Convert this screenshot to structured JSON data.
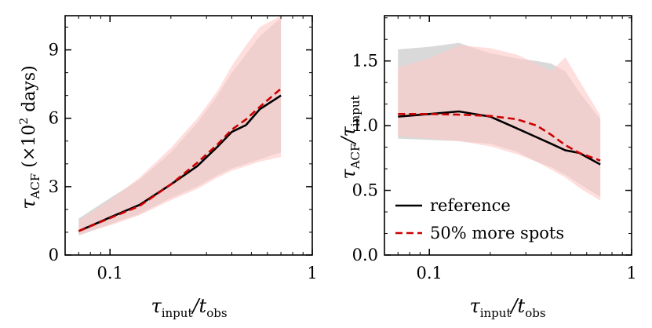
{
  "colors": {
    "reference": "#000000",
    "more_spots": "#cc0000",
    "band_reference": "#d0d0d0",
    "band_more_spots": "#ffc8c8"
  },
  "shared": {
    "xlabel_main": "τ",
    "xlabel_sub1": "input",
    "xlabel_mid": "/t",
    "xlabel_sub2": "obs"
  },
  "chart_data": [
    {
      "type": "line",
      "panel": "left",
      "xscale": "log",
      "xlim": [
        0.06,
        1
      ],
      "ylim": [
        0,
        10.5
      ],
      "x_ticks": [
        {
          "value": 0.1,
          "label": "0.1"
        },
        {
          "value": 1,
          "label": "1"
        }
      ],
      "y_ticks": [
        {
          "value": 0,
          "label": "0"
        },
        {
          "value": 3,
          "label": "3"
        },
        {
          "value": 6,
          "label": "6"
        },
        {
          "value": 9,
          "label": "9"
        }
      ],
      "ylabel": {
        "main": "τ",
        "sub": "ACF",
        "rest": " (×10",
        "sup": "2",
        "end": " days)"
      },
      "legend": null,
      "series": [
        {
          "name": "reference",
          "style": "solid",
          "x": [
            0.07,
            0.1,
            0.14,
            0.2,
            0.27,
            0.34,
            0.4,
            0.47,
            0.55,
            0.7
          ],
          "y": [
            1.05,
            1.65,
            2.2,
            3.1,
            3.9,
            4.75,
            5.4,
            5.7,
            6.4,
            7.0
          ],
          "band_lower": [
            0.85,
            1.35,
            1.8,
            2.5,
            3.0,
            3.5,
            3.8,
            4.0,
            4.2,
            4.5
          ],
          "band_upper": [
            1.6,
            2.5,
            3.3,
            4.5,
            5.8,
            7.0,
            8.0,
            8.8,
            9.6,
            10.4
          ]
        },
        {
          "name": "50% more spots",
          "style": "dashed",
          "x": [
            0.07,
            0.1,
            0.14,
            0.2,
            0.27,
            0.34,
            0.4,
            0.47,
            0.55,
            0.7
          ],
          "y": [
            1.05,
            1.62,
            2.15,
            3.1,
            4.05,
            4.85,
            5.5,
            5.95,
            6.5,
            7.3
          ],
          "band_lower": [
            0.9,
            1.3,
            1.75,
            2.4,
            2.9,
            3.4,
            3.7,
            3.9,
            4.1,
            4.3
          ],
          "band_upper": [
            1.5,
            2.4,
            3.4,
            4.7,
            6.0,
            7.2,
            8.3,
            9.2,
            10.0,
            10.5
          ]
        }
      ]
    },
    {
      "type": "line",
      "panel": "right",
      "xscale": "log",
      "xlim": [
        0.06,
        1
      ],
      "ylim": [
        0,
        1.85
      ],
      "x_ticks": [
        {
          "value": 0.1,
          "label": "0.1"
        },
        {
          "value": 1,
          "label": "1"
        }
      ],
      "y_ticks": [
        {
          "value": 0.0,
          "label": "0.0"
        },
        {
          "value": 0.5,
          "label": "0.5"
        },
        {
          "value": 1.0,
          "label": "1.0"
        },
        {
          "value": 1.5,
          "label": "1.5"
        }
      ],
      "ylabel": {
        "main": "τ",
        "sub": "ACF",
        "rest": "/τ",
        "sub2": "input"
      },
      "legend": {
        "position": "lower-left",
        "entries": [
          "reference",
          "50% more spots"
        ]
      },
      "series": [
        {
          "name": "reference",
          "style": "solid",
          "x": [
            0.07,
            0.1,
            0.14,
            0.2,
            0.27,
            0.34,
            0.4,
            0.47,
            0.55,
            0.7
          ],
          "y": [
            1.07,
            1.09,
            1.11,
            1.07,
            0.98,
            0.91,
            0.86,
            0.81,
            0.79,
            0.7
          ],
          "band_lower": [
            0.9,
            0.89,
            0.88,
            0.86,
            0.8,
            0.72,
            0.68,
            0.62,
            0.55,
            0.45
          ],
          "band_upper": [
            1.59,
            1.61,
            1.64,
            1.56,
            1.52,
            1.5,
            1.48,
            1.42,
            1.26,
            1.05
          ]
        },
        {
          "name": "50% more spots",
          "style": "dashed",
          "x": [
            0.07,
            0.1,
            0.14,
            0.2,
            0.27,
            0.34,
            0.4,
            0.47,
            0.55,
            0.7
          ],
          "y": [
            1.09,
            1.09,
            1.085,
            1.075,
            1.05,
            1.0,
            0.93,
            0.85,
            0.79,
            0.73
          ],
          "band_lower": [
            0.92,
            0.9,
            0.88,
            0.84,
            0.78,
            0.72,
            0.66,
            0.6,
            0.52,
            0.42
          ],
          "band_upper": [
            1.45,
            1.52,
            1.62,
            1.6,
            1.55,
            1.48,
            1.42,
            1.53,
            1.35,
            1.08
          ]
        }
      ]
    }
  ]
}
